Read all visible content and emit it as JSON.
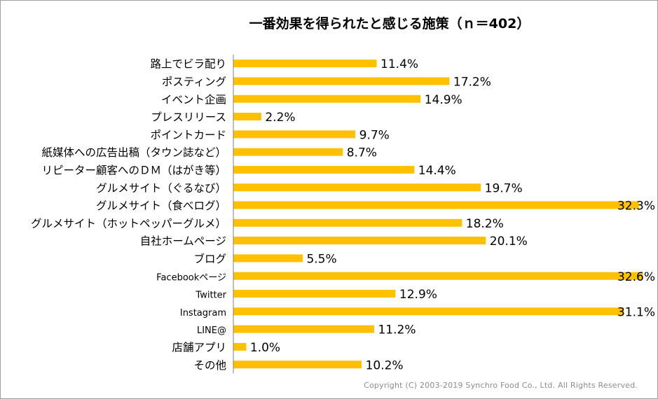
{
  "chart_data": {
    "type": "bar",
    "orientation": "horizontal",
    "title": "一番効果を得られたと感じる施策（ｎ＝402）",
    "categories": [
      "路上でビラ配り",
      "ポスティング",
      "イベント企画",
      "プレスリリース",
      "ポイントカード",
      "紙媒体への広告出稿（タウン誌など）",
      "リピーター顧客へのＤＭ（はがき等）",
      "グルメサイト（ぐるなび）",
      "グルメサイト（食べログ）",
      "グルメサイト（ホットペッパーグルメ）",
      "自社ホームページ",
      "ブログ",
      "Facebookページ",
      "Twitter",
      "Instagram",
      "LINE@",
      "店舗アプリ",
      "その他"
    ],
    "values": [
      11.4,
      17.2,
      14.9,
      2.2,
      9.7,
      8.7,
      14.4,
      19.7,
      32.3,
      18.2,
      20.1,
      5.5,
      32.6,
      12.9,
      31.1,
      11.2,
      1.0,
      10.2
    ],
    "value_labels": [
      "11.4%",
      "17.2%",
      "14.9%",
      "2.2%",
      "9.7%",
      "8.7%",
      "14.4%",
      "19.7%",
      "32.3%",
      "18.2%",
      "20.1%",
      "5.5%",
      "32.6%",
      "12.9%",
      "31.1%",
      "11.2%",
      "1.0%",
      "10.2%"
    ],
    "xlim": [
      0,
      35
    ],
    "grid": false,
    "legend": "none",
    "bar_color": "#FFC000",
    "axis_color": "#808080"
  },
  "copyright": "Copyright (C) 2003-2019 Synchro Food Co., Ltd. All Rights Reserved."
}
